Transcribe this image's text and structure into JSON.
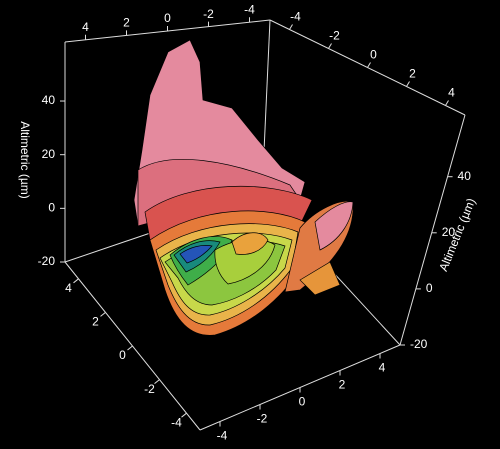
{
  "chart_data": {
    "type": "surface3d",
    "z_label": "Altimetric (µm)",
    "xlim": [
      -5,
      5
    ],
    "ylim": [
      -5,
      5
    ],
    "zlim": [
      -20,
      62
    ],
    "xticks": [
      -4,
      -2,
      0,
      2,
      4
    ],
    "yticks": [
      -4,
      -2,
      0,
      2,
      4
    ],
    "zticks": [
      -20,
      0,
      20,
      40
    ]
  }
}
